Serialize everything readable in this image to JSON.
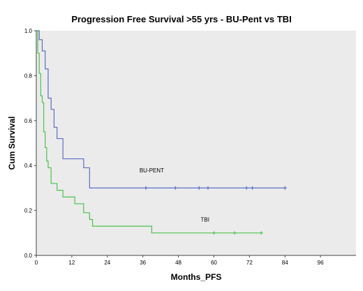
{
  "chart_data": {
    "type": "line",
    "title": "Progression Free Survival >55 yrs  - BU-Pent vs TBI",
    "xlabel": "Months_PFS",
    "ylabel": "Cum Survival",
    "xlim": [
      0,
      108
    ],
    "ylim": [
      0.0,
      1.0
    ],
    "xticks": [
      0,
      12,
      24,
      36,
      48,
      60,
      72,
      84,
      96
    ],
    "xtick_labels": [
      "0",
      "12",
      "24",
      "36",
      "48",
      "60",
      "72",
      "84",
      "96"
    ],
    "yticks": [
      0.0,
      0.2,
      0.4,
      0.6,
      0.8,
      1.0
    ],
    "ytick_labels": [
      "0.0",
      "0.2",
      "0.4",
      "0.6",
      "0.8",
      "1.0"
    ],
    "grid": false,
    "background": "#ebebeb",
    "series": [
      {
        "name": "BU-PENT",
        "color": "#5b6fc7",
        "step_points": [
          [
            0,
            1.0
          ],
          [
            1,
            0.96
          ],
          [
            2,
            0.91
          ],
          [
            3,
            0.83
          ],
          [
            4,
            0.7
          ],
          [
            5,
            0.65
          ],
          [
            6,
            0.57
          ],
          [
            7,
            0.52
          ],
          [
            9,
            0.43
          ],
          [
            16,
            0.39
          ],
          [
            18,
            0.3
          ],
          [
            84,
            0.3
          ]
        ],
        "censored": [
          [
            37,
            0.3
          ],
          [
            47,
            0.3
          ],
          [
            55,
            0.3
          ],
          [
            58,
            0.3
          ],
          [
            71,
            0.3
          ],
          [
            73,
            0.3
          ],
          [
            84,
            0.3
          ]
        ]
      },
      {
        "name": "TBI",
        "color": "#4dc24d",
        "step_points": [
          [
            0,
            1.0
          ],
          [
            0.5,
            0.9
          ],
          [
            1,
            0.81
          ],
          [
            1.5,
            0.71
          ],
          [
            2,
            0.68
          ],
          [
            2.5,
            0.55
          ],
          [
            3,
            0.48
          ],
          [
            3.5,
            0.42
          ],
          [
            4,
            0.39
          ],
          [
            5,
            0.32
          ],
          [
            7,
            0.29
          ],
          [
            9,
            0.26
          ],
          [
            13,
            0.23
          ],
          [
            16,
            0.19
          ],
          [
            18,
            0.16
          ],
          [
            19,
            0.13
          ],
          [
            39,
            0.1
          ],
          [
            76,
            0.1
          ]
        ],
        "censored": [
          [
            60,
            0.1
          ],
          [
            67,
            0.1
          ],
          [
            76,
            0.1
          ]
        ]
      }
    ],
    "annotations": [
      {
        "text": "BU-PENT",
        "series": "BU-PENT",
        "x": 39,
        "y": 0.37
      },
      {
        "text": "TBI",
        "series": "TBI",
        "x": 57,
        "y": 0.15
      }
    ]
  }
}
